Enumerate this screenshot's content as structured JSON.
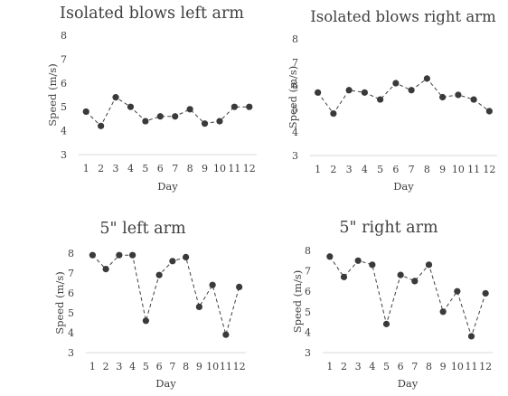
{
  "chart_data": [
    {
      "type": "line",
      "title": "Isolated blows left arm",
      "xlabel": "Day",
      "ylabel": "Speed (m/s)",
      "categories": [
        "1",
        "2",
        "3",
        "4",
        "5",
        "6",
        "7",
        "8",
        "9",
        "10",
        "11",
        "12"
      ],
      "values": [
        4.8,
        4.2,
        5.4,
        5.0,
        4.4,
        4.6,
        4.6,
        4.9,
        4.3,
        4.4,
        5.0,
        5.0
      ],
      "ylim": [
        3,
        8
      ],
      "yticks": [
        "3",
        "4",
        "5",
        "6",
        "7",
        "8"
      ],
      "grid": false
    },
    {
      "type": "line",
      "title": "Isolated blows right arm",
      "xlabel": "Day",
      "ylabel": "Speed (m/s)",
      "categories": [
        "1",
        "2",
        "3",
        "4",
        "5",
        "6",
        "7",
        "8",
        "9",
        "10",
        "11",
        "12"
      ],
      "values": [
        5.7,
        4.8,
        5.8,
        5.7,
        5.4,
        6.1,
        5.8,
        6.3,
        5.5,
        5.6,
        5.4,
        4.9
      ],
      "ylim": [
        3,
        8
      ],
      "yticks": [
        "3",
        "4",
        "5",
        "6",
        "7",
        "8"
      ],
      "grid": false
    },
    {
      "type": "line",
      "title": "5\" left arm",
      "xlabel": "Day",
      "ylabel": "Speed (m/s)",
      "categories": [
        "1",
        "2",
        "3",
        "4",
        "5",
        "6",
        "7",
        "8",
        "9",
        "10",
        "11",
        "12"
      ],
      "values": [
        7.9,
        7.2,
        7.9,
        7.9,
        4.6,
        6.9,
        7.6,
        7.8,
        5.3,
        6.4,
        3.9,
        6.3
      ],
      "ylim": [
        3,
        8
      ],
      "yticks": [
        "3",
        "4",
        "5",
        "6",
        "7",
        "8"
      ],
      "grid": false
    },
    {
      "type": "line",
      "title": "5\" right arm",
      "xlabel": "Day",
      "ylabel": "Speed (m/s)",
      "categories": [
        "1",
        "2",
        "3",
        "4",
        "5",
        "6",
        "7",
        "8",
        "9",
        "10",
        "11",
        "12"
      ],
      "values": [
        7.7,
        6.7,
        7.5,
        7.3,
        4.4,
        6.8,
        6.5,
        7.3,
        5.0,
        6.0,
        3.8,
        5.9
      ],
      "ylim": [
        3,
        8
      ],
      "yticks": [
        "3",
        "4",
        "5",
        "6",
        "7",
        "8"
      ],
      "grid": false
    }
  ]
}
